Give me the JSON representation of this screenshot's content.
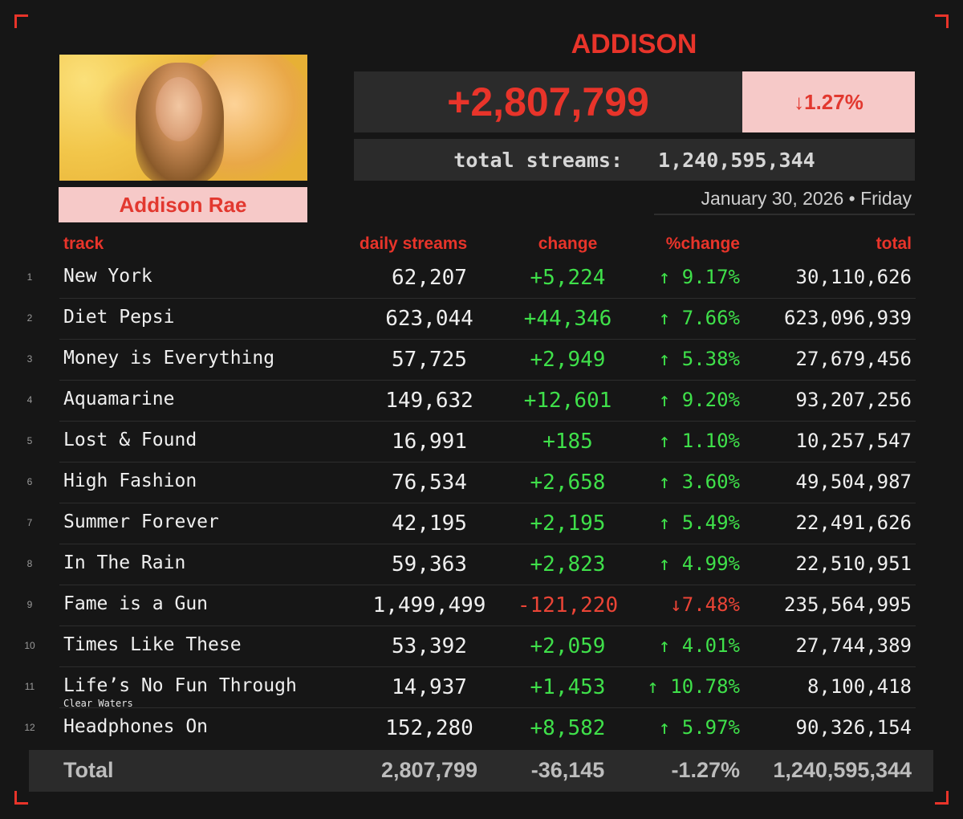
{
  "header": {
    "artist_title": "ADDISON",
    "artist_name": "Addison Rae",
    "daily_change": "+2,807,799",
    "daily_pct": "↓1.27%",
    "total_label": "total streams:",
    "total_value": "1,240,595,344",
    "date": "January 30, 2026 • Friday"
  },
  "columns": {
    "track": "track",
    "daily": "daily streams",
    "change": "change",
    "pct": "%change",
    "total": "total"
  },
  "rows": [
    {
      "num": "1",
      "track": "New York",
      "sub": "",
      "daily": "62,207",
      "change": "+5,224",
      "pct": "↑ 9.17%",
      "total": "30,110,626",
      "dir": "up"
    },
    {
      "num": "2",
      "track": "Diet Pepsi",
      "sub": "",
      "daily": "623,044",
      "change": "+44,346",
      "pct": "↑ 7.66%",
      "total": "623,096,939",
      "dir": "up"
    },
    {
      "num": "3",
      "track": "Money is Everything",
      "sub": "",
      "daily": "57,725",
      "change": "+2,949",
      "pct": "↑ 5.38%",
      "total": "27,679,456",
      "dir": "up"
    },
    {
      "num": "4",
      "track": "Aquamarine",
      "sub": "",
      "daily": "149,632",
      "change": "+12,601",
      "pct": "↑ 9.20%",
      "total": "93,207,256",
      "dir": "up"
    },
    {
      "num": "5",
      "track": "Lost & Found",
      "sub": "",
      "daily": "16,991",
      "change": "+185",
      "pct": "↑ 1.10%",
      "total": "10,257,547",
      "dir": "up"
    },
    {
      "num": "6",
      "track": "High Fashion",
      "sub": "",
      "daily": "76,534",
      "change": "+2,658",
      "pct": "↑ 3.60%",
      "total": "49,504,987",
      "dir": "up"
    },
    {
      "num": "7",
      "track": "Summer Forever",
      "sub": "",
      "daily": "42,195",
      "change": "+2,195",
      "pct": "↑ 5.49%",
      "total": "22,491,626",
      "dir": "up"
    },
    {
      "num": "8",
      "track": "In The Rain",
      "sub": "",
      "daily": "59,363",
      "change": "+2,823",
      "pct": "↑ 4.99%",
      "total": "22,510,951",
      "dir": "up"
    },
    {
      "num": "9",
      "track": "Fame is a Gun",
      "sub": "",
      "daily": "1,499,499",
      "change": "-121,220",
      "pct": "↓7.48%",
      "total": "235,564,995",
      "dir": "down"
    },
    {
      "num": "10",
      "track": "Times Like These",
      "sub": "",
      "daily": "53,392",
      "change": "+2,059",
      "pct": "↑ 4.01%",
      "total": "27,744,389",
      "dir": "up"
    },
    {
      "num": "11",
      "track": "Life’s No Fun Through",
      "sub": "Clear Waters",
      "daily": "14,937",
      "change": "+1,453",
      "pct": "↑ 10.78%",
      "total": "8,100,418",
      "dir": "up"
    },
    {
      "num": "12",
      "track": "Headphones On",
      "sub": "",
      "daily": "152,280",
      "change": "+8,582",
      "pct": "↑ 5.97%",
      "total": "90,326,154",
      "dir": "up"
    }
  ],
  "footer": {
    "label": "Total",
    "daily": "2,807,799",
    "change": "-36,145",
    "pct": "-1.27%",
    "total": "1,240,595,344"
  },
  "colors": {
    "accent": "#e8342a",
    "pink": "#f6c9c8",
    "positive": "#3fe04a",
    "negative": "#ea4436",
    "background": "#161616"
  }
}
